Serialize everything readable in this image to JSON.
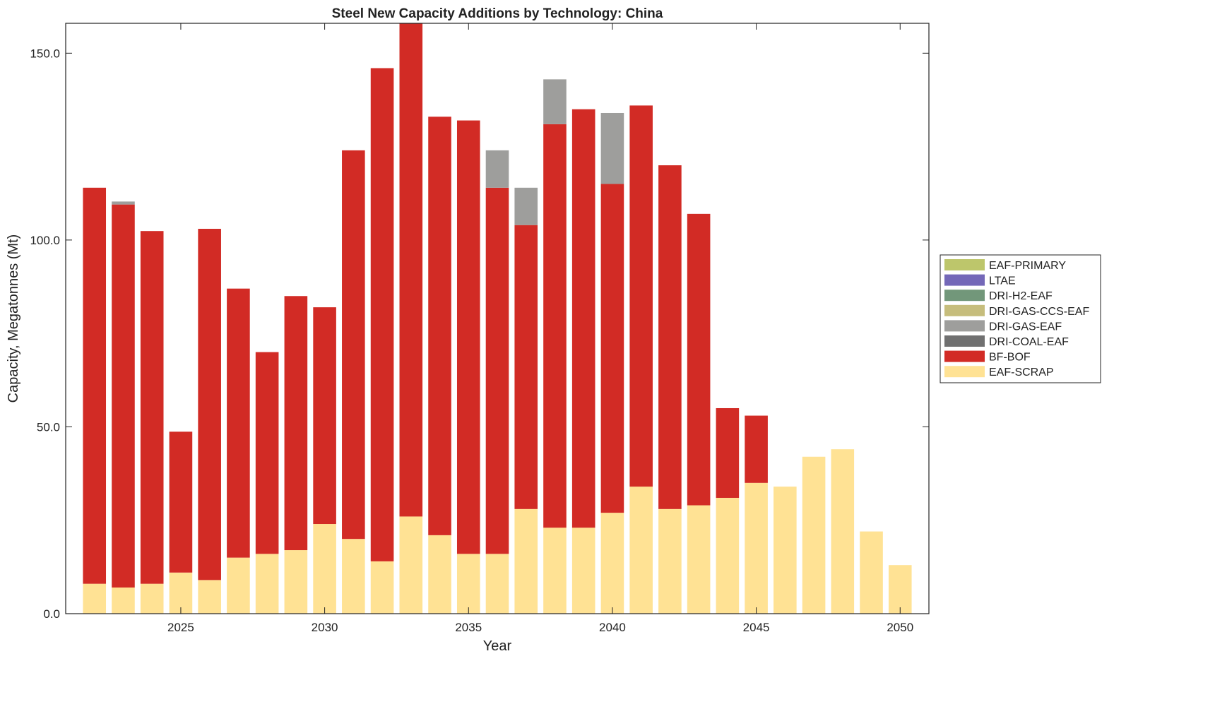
{
  "chart_data": {
    "type": "bar",
    "stacked": true,
    "title": "Steel New Capacity Additions by Technology: China",
    "xlabel": "Year",
    "ylabel": "Capacity, Megatonnes (Mt)",
    "xlim": [
      2021,
      2051
    ],
    "ylim": [
      0,
      158
    ],
    "xticks": [
      2025,
      2030,
      2035,
      2040,
      2045,
      2050
    ],
    "yticks": [
      "0.0",
      "50.0",
      "100.0",
      "150.0"
    ],
    "ytick_values": [
      0,
      50,
      100,
      150
    ],
    "legend_position": "right",
    "categories": [
      2022,
      2023,
      2024,
      2025,
      2026,
      2027,
      2028,
      2029,
      2030,
      2031,
      2032,
      2033,
      2034,
      2035,
      2036,
      2037,
      2038,
      2039,
      2040,
      2041,
      2042,
      2043,
      2044,
      2045,
      2046,
      2047,
      2048,
      2049,
      2050
    ],
    "series": [
      {
        "name": "EAF-SCRAP",
        "color": "#FFE294",
        "values": [
          8,
          7,
          8,
          11,
          9,
          15,
          16,
          17,
          24,
          20,
          14,
          26,
          21,
          16,
          16,
          28,
          23,
          23,
          27,
          34,
          28,
          29,
          31,
          35,
          34,
          42,
          44,
          22,
          13
        ]
      },
      {
        "name": "BF-BOF",
        "color": "#D22B25",
        "values": [
          106,
          102.5,
          94.4,
          37.7,
          94,
          72,
          54,
          68,
          58,
          104,
          132,
          132,
          112,
          116,
          98,
          76,
          108,
          112,
          88,
          102,
          92,
          78,
          24,
          18,
          0,
          0,
          0,
          0,
          0
        ]
      },
      {
        "name": "DRI-COAL-EAF",
        "color": "#707070",
        "values": [
          0,
          0,
          0,
          0,
          0,
          0,
          0,
          0,
          0,
          0,
          0,
          0,
          0,
          0,
          0,
          0,
          0,
          0,
          0,
          0,
          0,
          0,
          0,
          0,
          0,
          0,
          0,
          0,
          0
        ]
      },
      {
        "name": "DRI-GAS-EAF",
        "color": "#9E9E9C",
        "values": [
          0,
          0.8,
          0,
          0,
          0,
          0,
          0,
          0,
          0,
          0,
          0,
          0,
          0,
          0,
          10,
          10,
          12,
          0,
          19,
          0,
          0,
          0,
          0,
          0,
          0,
          0,
          0,
          0,
          0
        ]
      },
      {
        "name": "DRI-GAS-CCS-EAF",
        "color": "#C6BD7C",
        "values": [
          0,
          0,
          0,
          0,
          0,
          0,
          0,
          0,
          0,
          0,
          0,
          0,
          0,
          0,
          0,
          0,
          0,
          0,
          0,
          0,
          0,
          0,
          0,
          0,
          0,
          0,
          0,
          0,
          0
        ]
      },
      {
        "name": "DRI-H2-EAF",
        "color": "#72977A",
        "values": [
          0,
          0,
          0,
          0,
          0,
          0,
          0,
          0,
          0,
          0,
          0,
          0,
          0,
          0,
          0,
          0,
          0,
          0,
          0,
          0,
          0,
          0,
          0,
          0,
          0,
          0,
          0,
          0,
          0
        ]
      },
      {
        "name": "LTAE",
        "color": "#7468B8",
        "values": [
          0,
          0,
          0,
          0,
          0,
          0,
          0,
          0,
          0,
          0,
          0,
          0,
          0,
          0,
          0,
          0,
          0,
          0,
          0,
          0,
          0,
          0,
          0,
          0,
          0,
          0,
          0,
          0,
          0
        ]
      },
      {
        "name": "EAF-PRIMARY",
        "color": "#BDC66B",
        "values": [
          0,
          0,
          0,
          0,
          0,
          0,
          0,
          0,
          0,
          0,
          0,
          0,
          0,
          0,
          0,
          0,
          0,
          0,
          0,
          0,
          0,
          0,
          0,
          0,
          0,
          0,
          0,
          0,
          0
        ]
      }
    ]
  }
}
